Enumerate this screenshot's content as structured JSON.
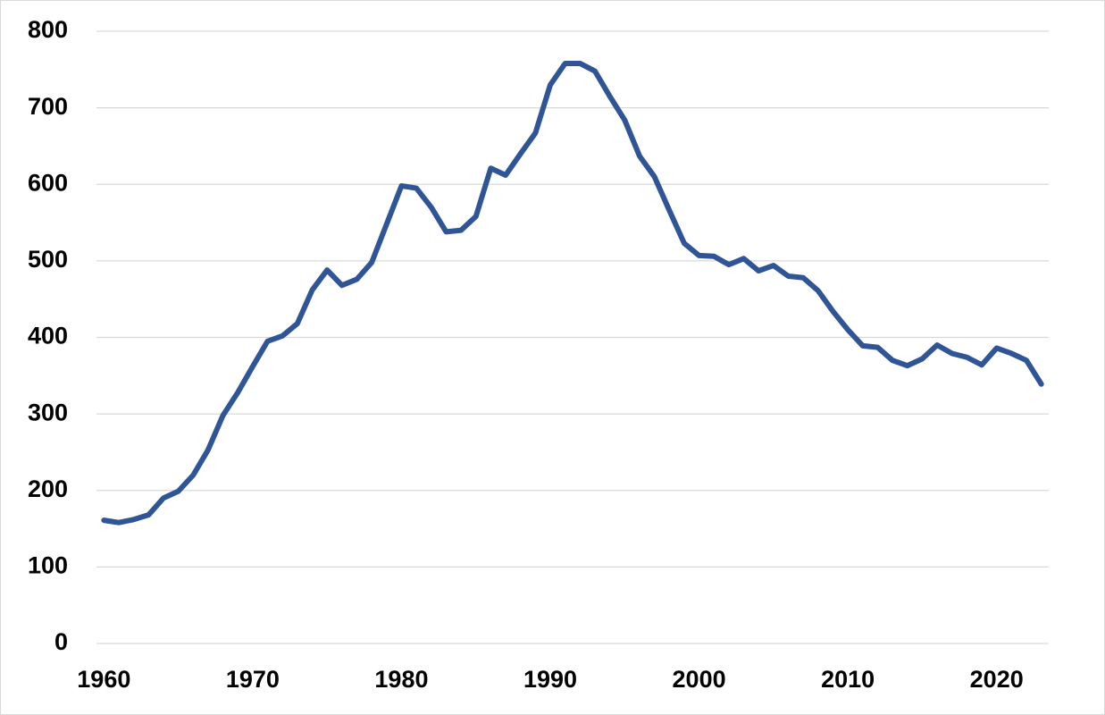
{
  "chart_data": {
    "type": "line",
    "x": [
      1960,
      1961,
      1962,
      1963,
      1964,
      1965,
      1966,
      1967,
      1968,
      1969,
      1970,
      1971,
      1972,
      1973,
      1974,
      1975,
      1976,
      1977,
      1978,
      1979,
      1980,
      1981,
      1982,
      1983,
      1984,
      1985,
      1986,
      1987,
      1988,
      1989,
      1990,
      1991,
      1992,
      1993,
      1994,
      1995,
      1996,
      1997,
      1998,
      1999,
      2000,
      2001,
      2002,
      2003,
      2004,
      2005,
      2006,
      2007,
      2008,
      2009,
      2010,
      2011,
      2012,
      2013,
      2014,
      2015,
      2016,
      2017,
      2018,
      2019,
      2020,
      2021,
      2022,
      2023
    ],
    "series": [
      {
        "color": "#2f5597",
        "values": [
          161,
          158,
          162,
          168,
          190,
          199,
          220,
          253,
          298,
          328,
          362,
          395,
          402,
          418,
          462,
          488,
          468,
          476,
          498,
          548,
          598,
          595,
          570,
          538,
          540,
          558,
          621,
          612,
          640,
          667,
          730,
          758,
          758,
          748,
          715,
          684,
          637,
          610,
          566,
          523,
          507,
          506,
          495,
          503,
          487,
          494,
          480,
          478,
          461,
          434,
          410,
          389,
          387,
          370,
          363,
          372,
          390,
          379,
          374,
          364,
          386,
          379,
          370,
          339
        ]
      }
    ],
    "xlim": [
      1959.5,
      2023.5
    ],
    "xticks": [
      1960,
      1970,
      1980,
      1990,
      2000,
      2010,
      2020
    ],
    "ylim": [
      0,
      800
    ],
    "yticks": [
      0,
      100,
      200,
      300,
      400,
      500,
      600,
      700,
      800
    ],
    "grid": true
  }
}
